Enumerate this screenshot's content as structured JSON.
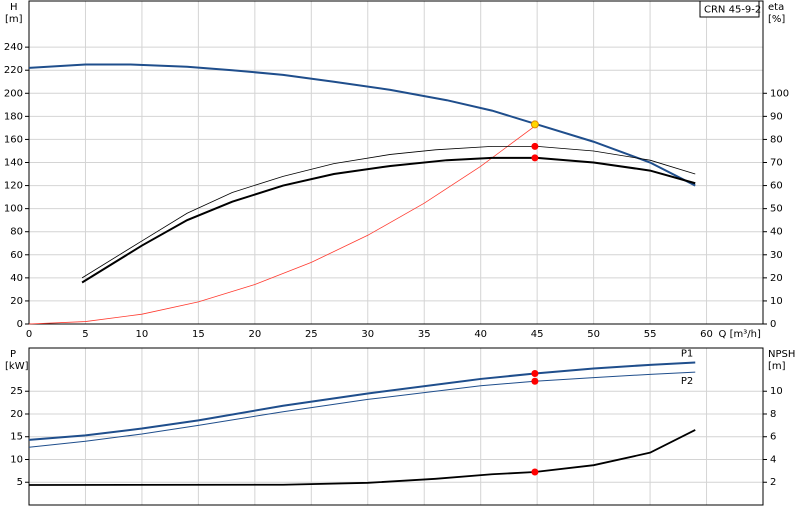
{
  "chart_data": [
    {
      "type": "line",
      "title": "CRN 45-9-2",
      "ylabel": "H",
      "yunit": "[m]",
      "y2label": "eta",
      "y2unit": "[%]",
      "xlabel": "Q [m³/h]",
      "xlim": [
        0,
        65
      ],
      "xticks": [
        0,
        5,
        10,
        15,
        20,
        25,
        30,
        35,
        40,
        45,
        50,
        55,
        60
      ],
      "ylim": [
        0,
        280
      ],
      "yticks": [
        0,
        20,
        40,
        60,
        80,
        100,
        120,
        140,
        160,
        180,
        200,
        220,
        240
      ],
      "y2lim": [
        0,
        140
      ],
      "y2ticks": [
        0,
        10,
        20,
        30,
        40,
        50,
        60,
        70,
        80,
        90,
        100
      ],
      "grid": true,
      "series": [
        {
          "color": "#ff3b30",
          "line_width": 0.8,
          "x": [
            0,
            5,
            10,
            15,
            20,
            25,
            30,
            35,
            40,
            45
          ],
          "values": [
            0,
            2.1,
            8.5,
            19.2,
            34.2,
            53.4,
            76.9,
            104.7,
            136.7,
            173
          ]
        },
        {
          "color": "#1f4e8c",
          "line_width": 2,
          "x": [
            0,
            5,
            9,
            14,
            18,
            22.5,
            27,
            32,
            37,
            41,
            45,
            50,
            55,
            59
          ],
          "values": [
            222,
            225,
            225,
            223,
            220,
            216,
            210,
            203,
            194,
            185,
            173,
            158,
            140,
            120
          ]
        },
        {
          "color": "#000000",
          "line_width": 0.8,
          "axis": "y2",
          "x": [
            4.7,
            10,
            14,
            18,
            22.5,
            27,
            32,
            36,
            41,
            45,
            50,
            55,
            59
          ],
          "values": [
            20,
            36,
            48,
            57,
            64,
            69.5,
            73.5,
            75.5,
            77,
            77,
            75,
            71,
            65
          ]
        },
        {
          "color": "#000000",
          "line_width": 2,
          "axis": "y2",
          "x": [
            4.7,
            10,
            14,
            18,
            22.5,
            27,
            32,
            37,
            41,
            45,
            50,
            55,
            59
          ],
          "values": [
            18,
            34,
            45,
            53,
            60,
            65,
            68.5,
            71,
            72,
            72,
            70,
            66.5,
            61
          ]
        },
        {
          "color": "#ff0000",
          "mode": "markers",
          "axis": "y2",
          "x": [
            44.8,
            44.8
          ],
          "values": [
            77,
            72
          ]
        },
        {
          "color": "#ffd700",
          "mode": "markers",
          "x": [
            44.8
          ],
          "values": [
            173
          ]
        }
      ]
    },
    {
      "type": "line",
      "ylabel": "P",
      "yunit": "[kW]",
      "y2label": "NPSH",
      "y2unit": "[m]",
      "xlim": [
        0,
        65
      ],
      "ylim": [
        0,
        34.5
      ],
      "yticks": [
        5,
        10,
        15,
        20,
        25
      ],
      "y2lim": [
        0,
        13.8
      ],
      "y2ticks": [
        2,
        4,
        6,
        8,
        10
      ],
      "grid": true,
      "series": [
        {
          "name": "P1",
          "color": "#1f4e8c",
          "line_width": 2,
          "x": [
            0,
            5,
            10,
            15,
            22.5,
            30,
            40,
            44.8,
            50,
            55,
            59
          ],
          "values": [
            14.3,
            15.3,
            16.8,
            18.6,
            21.8,
            24.5,
            27.7,
            28.9,
            30,
            30.8,
            31.3
          ]
        },
        {
          "name": "P2",
          "color": "#1f4e8c",
          "line_width": 1,
          "x": [
            0,
            5,
            10,
            15,
            22.5,
            30,
            40,
            44.8,
            50,
            55,
            59
          ],
          "values": [
            12.7,
            14,
            15.6,
            17.5,
            20.5,
            23.2,
            26.2,
            27.2,
            28,
            28.7,
            29.2
          ]
        },
        {
          "color": "#000000",
          "line_width": 1.8,
          "axis": "y2",
          "x": [
            0,
            22.5,
            30,
            36,
            41,
            44.8,
            50,
            55,
            59
          ],
          "values": [
            1.76,
            1.78,
            1.95,
            2.3,
            2.7,
            2.9,
            3.5,
            4.6,
            6.6
          ]
        },
        {
          "color": "#ff0000",
          "mode": "markers",
          "x": [
            44.8,
            44.8
          ],
          "values": [
            28.9,
            27.2
          ]
        },
        {
          "color": "#ff0000",
          "mode": "markers",
          "axis": "y2",
          "x": [
            44.8
          ],
          "values": [
            2.9
          ]
        }
      ]
    }
  ]
}
